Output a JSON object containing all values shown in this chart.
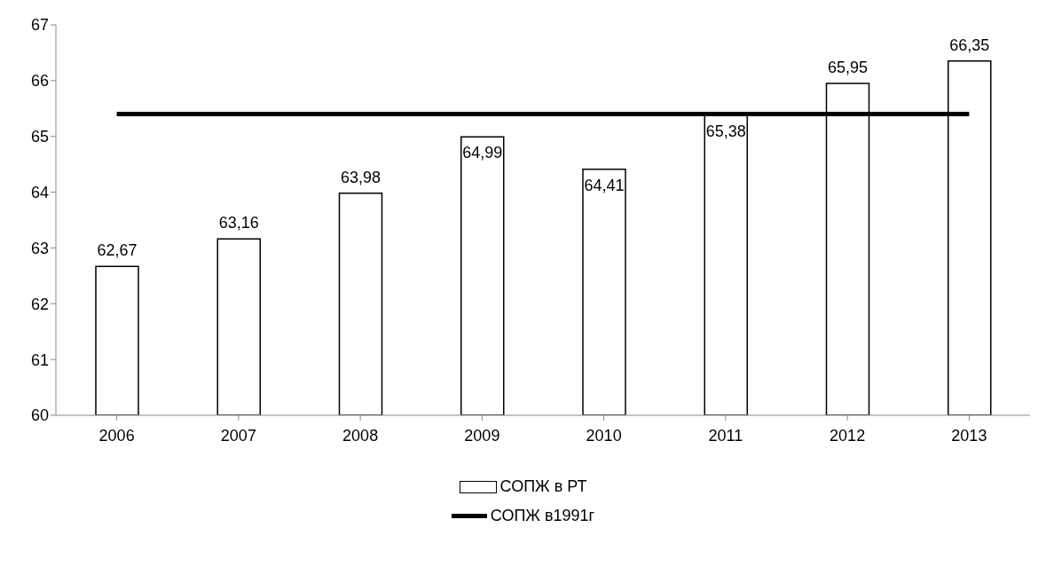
{
  "chart_data": {
    "type": "bar",
    "categories": [
      "2006",
      "2007",
      "2008",
      "2009",
      "2010",
      "2011",
      "2012",
      "2013"
    ],
    "series": [
      {
        "name": "СОПЖ в РТ",
        "color": "#ffffff",
        "values": [
          62.67,
          63.16,
          63.98,
          64.99,
          64.41,
          65.38,
          65.95,
          66.35
        ],
        "value_labels": [
          "62,67",
          "63,16",
          "63,98",
          "64,99",
          "64,41",
          "65,38",
          "65,95",
          "66,35"
        ]
      },
      {
        "name": "СОПЖ в1991г",
        "type": "line",
        "color": "#000000",
        "values": [
          65.4,
          65.4,
          65.4,
          65.4,
          65.4,
          65.4,
          65.4,
          65.4
        ],
        "marker": "none"
      }
    ],
    "ylim": [
      60,
      67
    ],
    "yticks": [
      60,
      61,
      62,
      63,
      64,
      65,
      66,
      67
    ],
    "legend": "bottom"
  }
}
